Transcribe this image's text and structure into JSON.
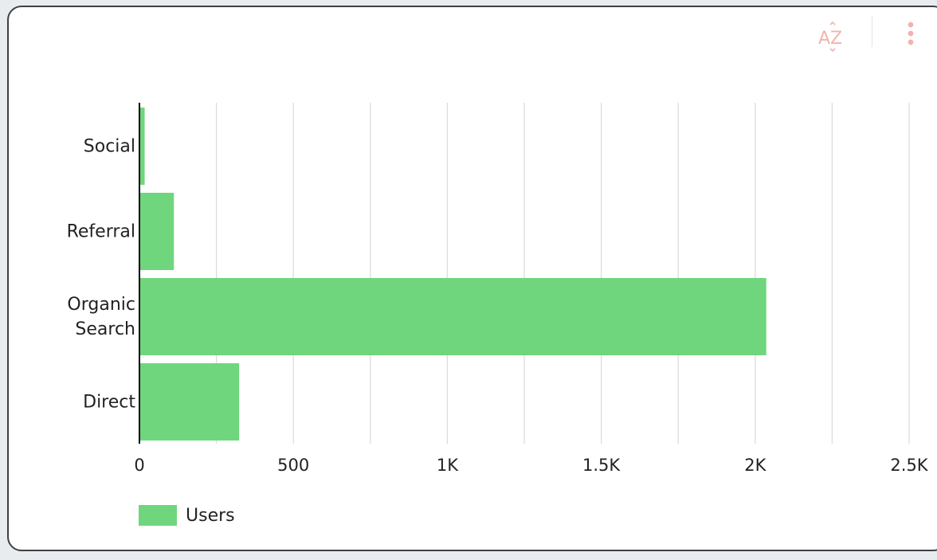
{
  "chart_data": {
    "type": "bar",
    "orientation": "horizontal",
    "categories": [
      "Social",
      "Referral",
      "Organic Search",
      "Direct"
    ],
    "category_lines": [
      [
        "Social"
      ],
      [
        "Referral"
      ],
      [
        "Organic",
        "Search"
      ],
      [
        "Direct"
      ]
    ],
    "series": [
      {
        "name": "Users",
        "values": [
          17,
          112,
          2036,
          324
        ]
      }
    ],
    "xlim": [
      0,
      2500
    ],
    "x_ticks": [
      0,
      250,
      500,
      750,
      1000,
      1250,
      1500,
      1750,
      2000,
      2250,
      2500
    ],
    "x_tick_labels": [
      "0",
      "",
      "500",
      "",
      "1K",
      "",
      "1.5K",
      "",
      "2K",
      "",
      "2.5K"
    ],
    "title": "",
    "xlabel": "",
    "ylabel": "",
    "grid": true,
    "legend_position": "bottom-left"
  },
  "colors": {
    "bar": "#6fd67d",
    "gridline": "#dcdcdc",
    "axis": "#000000",
    "text": "#222222",
    "toolbar_icon": "#f2b3ae"
  },
  "toolbar": {
    "sort_icon": "sort-az-icon",
    "sort_text": "AZ",
    "menu_icon": "more-vertical-icon"
  },
  "legend": {
    "label": "Users"
  }
}
